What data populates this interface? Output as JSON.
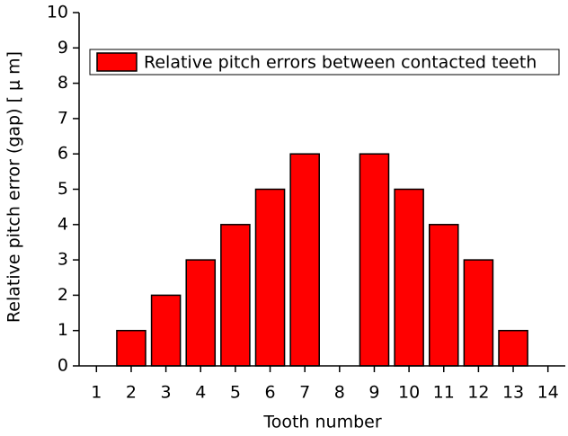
{
  "chart_data": {
    "type": "bar",
    "x_label": "Tooth number",
    "y_label": "Relative pitch error (gap) [ μ m]",
    "x": [
      2,
      3,
      4,
      5,
      6,
      7,
      9,
      10,
      11,
      12,
      13
    ],
    "series": [
      {
        "name": "Relative pitch errors between contacted teeth",
        "color": "#ff0000",
        "values": [
          1,
          2,
          3,
          4,
          5,
          6,
          6,
          5,
          4,
          3,
          1
        ]
      }
    ],
    "xlim": [
      0.5,
      14.5
    ],
    "xticks": [
      1,
      2,
      3,
      4,
      5,
      6,
      7,
      8,
      9,
      10,
      11,
      12,
      13,
      14
    ],
    "ylim": [
      0,
      10
    ],
    "yticks": [
      0,
      1,
      2,
      3,
      4,
      5,
      6,
      7,
      8,
      9,
      10
    ],
    "legend": "top"
  }
}
